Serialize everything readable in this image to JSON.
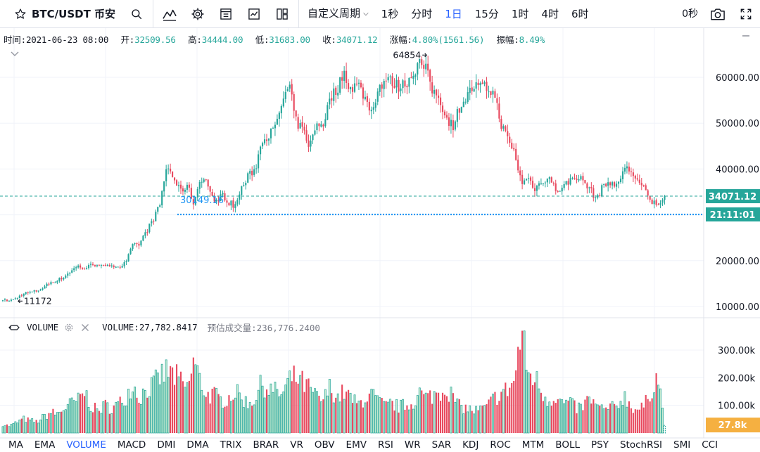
{
  "toolbar": {
    "symbol": "BTC/USDT 币安",
    "custom_period": "自定义周期",
    "intervals": [
      "1秒",
      "分时",
      "1日",
      "15分",
      "1时",
      "4时",
      "6时"
    ],
    "active_interval": "1日",
    "countdown": "0秒"
  },
  "legend": {
    "time_label": "时间:",
    "time_value": "2021-06-23 08:00",
    "open_label": "开:",
    "open_value": "32509.56",
    "high_label": "高:",
    "high_value": "34444.00",
    "low_label": "低:",
    "low_value": "31683.00",
    "close_label": "收:",
    "close_value": "34071.12",
    "change_label": "涨幅:",
    "change_value": "4.80%(1561.56)",
    "amplitude_label": "振幅:",
    "amplitude_value": "8.49%"
  },
  "volume_legend": {
    "name": "VOLUME",
    "value_text": "VOLUME:27,782.8417",
    "estimate_text": "预估成交量:236,776.2400"
  },
  "price_axis": {
    "ticks": [
      "60000.00",
      "50000.00",
      "40000.00",
      "20000.00",
      "10000.00"
    ],
    "current_price": "34071.12",
    "countdown_label": "21:11:01",
    "crosshair_price": "30149.16"
  },
  "volume_axis": {
    "ticks": [
      "300.00k",
      "200.00k",
      "100.00k"
    ],
    "current_label": "27.8k"
  },
  "annotations": {
    "max_label": "64854",
    "min_label": "11172"
  },
  "indicator_tabs": [
    "MA",
    "EMA",
    "VOLUME",
    "MACD",
    "DMI",
    "DMA",
    "TRIX",
    "BRAR",
    "VR",
    "OBV",
    "EMV",
    "RSI",
    "WR",
    "SAR",
    "KDJ",
    "ROC",
    "MTM",
    "BOLL",
    "PSY",
    "StochRSI",
    "SMI",
    "CCI"
  ],
  "active_indicator": "VOLUME",
  "colors": {
    "up": "#26a69a",
    "down": "#e84a5f",
    "up_volume_fill": "#c8ebd1",
    "current_price_line": "#26a69a",
    "countdown_line": "#2196f3",
    "volume_current_bg": "#f5b041",
    "accent": "#2962ff"
  },
  "chart_data": {
    "type": "candlestick",
    "title": "BTC/USDT 币安",
    "interval": "1日",
    "price_axis_ticks": [
      10000,
      20000,
      40000,
      50000,
      60000
    ],
    "volume_axis_ticks": [
      100000,
      200000,
      300000
    ],
    "current_price": 34071.12,
    "max_high": 64854,
    "min_low": 11172,
    "last_candle": {
      "time": "2021-06-23 08:00",
      "open": 32509.56,
      "high": 34444.0,
      "low": 31683.0,
      "close": 34071.12,
      "volume": 27782.8417
    },
    "anchors": [
      {
        "p": 11400,
        "v": 30000
      },
      {
        "p": 11200,
        "v": 24000
      },
      {
        "p": 11800,
        "v": 35000
      },
      {
        "p": 12800,
        "v": 48000
      },
      {
        "p": 13100,
        "v": 42000
      },
      {
        "p": 13400,
        "v": 38000
      },
      {
        "p": 14200,
        "v": 55000
      },
      {
        "p": 15300,
        "v": 70000
      },
      {
        "p": 15700,
        "v": 65000
      },
      {
        "p": 16500,
        "v": 85000
      },
      {
        "p": 17800,
        "v": 100000
      },
      {
        "p": 18800,
        "v": 110000
      },
      {
        "p": 18200,
        "v": 140000
      },
      {
        "p": 19100,
        "v": 90000
      },
      {
        "p": 19300,
        "v": 75000
      },
      {
        "p": 18500,
        "v": 95000
      },
      {
        "p": 19200,
        "v": 85000
      },
      {
        "p": 18600,
        "v": 100000
      },
      {
        "p": 19500,
        "v": 120000
      },
      {
        "p": 23200,
        "v": 170000
      },
      {
        "p": 23600,
        "v": 120000
      },
      {
        "p": 26300,
        "v": 150000
      },
      {
        "p": 28900,
        "v": 160000
      },
      {
        "p": 32000,
        "v": 190000
      },
      {
        "p": 40600,
        "v": 210000
      },
      {
        "p": 38200,
        "v": 200000
      },
      {
        "p": 35000,
        "v": 175000
      },
      {
        "p": 36500,
        "v": 150000
      },
      {
        "p": 32500,
        "v": 245000
      },
      {
        "p": 38200,
        "v": 170000
      },
      {
        "p": 37000,
        "v": 130000
      },
      {
        "p": 32300,
        "v": 130000
      },
      {
        "p": 34500,
        "v": 110000
      },
      {
        "p": 33000,
        "v": 120000
      },
      {
        "p": 31800,
        "v": 140000
      },
      {
        "p": 35800,
        "v": 120000
      },
      {
        "p": 38500,
        "v": 100000
      },
      {
        "p": 40000,
        "v": 120000
      },
      {
        "p": 46500,
        "v": 170000
      },
      {
        "p": 47500,
        "v": 150000
      },
      {
        "p": 49000,
        "v": 140000
      },
      {
        "p": 55000,
        "v": 130000
      },
      {
        "p": 57800,
        "v": 180000
      },
      {
        "p": 50200,
        "v": 190000
      },
      {
        "p": 48500,
        "v": 170000
      },
      {
        "p": 45000,
        "v": 150000
      },
      {
        "p": 49800,
        "v": 120000
      },
      {
        "p": 50000,
        "v": 110000
      },
      {
        "p": 55500,
        "v": 160000
      },
      {
        "p": 57500,
        "v": 120000
      },
      {
        "p": 61000,
        "v": 140000
      },
      {
        "p": 57500,
        "v": 120000
      },
      {
        "p": 58600,
        "v": 95000
      },
      {
        "p": 55800,
        "v": 120000
      },
      {
        "p": 52500,
        "v": 130000
      },
      {
        "p": 57400,
        "v": 110000
      },
      {
        "p": 59500,
        "v": 90000
      },
      {
        "p": 59000,
        "v": 100000
      },
      {
        "p": 58000,
        "v": 90000
      },
      {
        "p": 58600,
        "v": 95000
      },
      {
        "p": 60600,
        "v": 100000
      },
      {
        "p": 63300,
        "v": 140000
      },
      {
        "p": 61700,
        "v": 120000
      },
      {
        "p": 57000,
        "v": 130000
      },
      {
        "p": 55600,
        "v": 140000
      },
      {
        "p": 51000,
        "v": 160000
      },
      {
        "p": 49500,
        "v": 120000
      },
      {
        "p": 53800,
        "v": 90000
      },
      {
        "p": 55800,
        "v": 85000
      },
      {
        "p": 58000,
        "v": 75000
      },
      {
        "p": 57800,
        "v": 80000
      },
      {
        "p": 57600,
        "v": 90000
      },
      {
        "p": 56500,
        "v": 120000
      },
      {
        "p": 50000,
        "v": 135000
      },
      {
        "p": 46400,
        "v": 150000
      },
      {
        "p": 43500,
        "v": 180000
      },
      {
        "p": 37000,
        "v": 350000
      },
      {
        "p": 38000,
        "v": 200000
      },
      {
        "p": 35700,
        "v": 190000
      },
      {
        "p": 37300,
        "v": 140000
      },
      {
        "p": 38300,
        "v": 110000
      },
      {
        "p": 35500,
        "v": 130000
      },
      {
        "p": 35800,
        "v": 100000
      },
      {
        "p": 37400,
        "v": 105000
      },
      {
        "p": 38500,
        "v": 85000
      },
      {
        "p": 37500,
        "v": 90000
      },
      {
        "p": 35600,
        "v": 120000
      },
      {
        "p": 33500,
        "v": 90000
      },
      {
        "p": 36300,
        "v": 80000
      },
      {
        "p": 37300,
        "v": 85000
      },
      {
        "p": 36000,
        "v": 90000
      },
      {
        "p": 40200,
        "v": 130000
      },
      {
        "p": 39700,
        "v": 95000
      },
      {
        "p": 37500,
        "v": 80000
      },
      {
        "p": 35500,
        "v": 90000
      },
      {
        "p": 32700,
        "v": 150000
      },
      {
        "p": 32500,
        "v": 200000
      },
      {
        "p": 34071.12,
        "v": 27782.8417
      }
    ]
  }
}
